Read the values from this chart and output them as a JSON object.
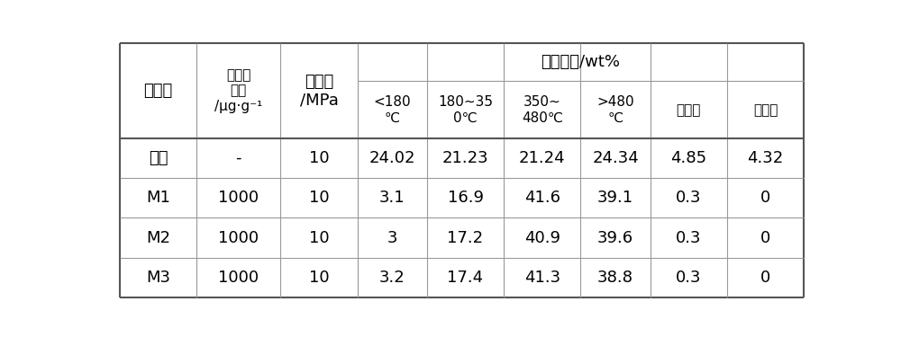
{
  "rows": [
    [
      "空白",
      "-",
      "10",
      "24.02",
      "21.23",
      "21.24",
      "24.34",
      "4.85",
      "4.32"
    ],
    [
      "M1",
      "1000",
      "10",
      "3.1",
      "16.9",
      "41.6",
      "39.1",
      "0.3",
      "0"
    ],
    [
      "M2",
      "1000",
      "10",
      "3",
      "17.2",
      "40.9",
      "39.6",
      "0.3",
      "0"
    ],
    [
      "M3",
      "1000",
      "10",
      "3.2",
      "17.4",
      "41.3",
      "38.8",
      "0.3",
      "0"
    ]
  ],
  "header_col0": "催化剂",
  "header_col1_line1": "催化剂",
  "header_col1_line2": "浓度",
  "header_col1_line3": "/μg·g⁻¹",
  "header_col2_line1": "氢初压",
  "header_col2_line2": "/MPa",
  "header_merged": "产品收率/wt%",
  "sub_col3": "<180\n℃",
  "sub_col4": "180~35\n0℃",
  "sub_col5": "350~\n480℃",
  "sub_col6": ">480\n℃",
  "sub_col7": "液相焦",
  "sub_col8": "壁相焦",
  "border_color": "#999999",
  "thick_border_color": "#555555",
  "text_color": "#000000",
  "background_color": "#ffffff",
  "font_size_header": 13,
  "font_size_subheader": 11,
  "font_size_data": 13
}
